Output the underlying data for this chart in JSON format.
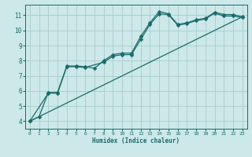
{
  "xlabel": "Humidex (Indice chaleur)",
  "bg_color": "#cce8e8",
  "line_color": "#1a6b6b",
  "grid_color": "#aacccc",
  "xlim": [
    -0.5,
    23.5
  ],
  "ylim": [
    3.5,
    11.7
  ],
  "xticks": [
    0,
    1,
    2,
    3,
    4,
    5,
    6,
    7,
    8,
    9,
    10,
    11,
    12,
    13,
    14,
    15,
    16,
    17,
    18,
    19,
    20,
    21,
    22,
    23
  ],
  "yticks": [
    4,
    5,
    6,
    7,
    8,
    9,
    10,
    11
  ],
  "line1_x": [
    0,
    1,
    2,
    3,
    4,
    5,
    6,
    7,
    8,
    9,
    10,
    11,
    12,
    13,
    14,
    15,
    16,
    17,
    18,
    19,
    20,
    21,
    22,
    23
  ],
  "line1_y": [
    4.0,
    4.3,
    5.9,
    5.9,
    7.65,
    7.65,
    7.6,
    7.5,
    8.0,
    8.4,
    8.5,
    8.5,
    9.6,
    10.5,
    11.25,
    11.1,
    10.4,
    10.5,
    10.7,
    10.8,
    11.2,
    11.05,
    11.05,
    10.9
  ],
  "line2_x": [
    0,
    2,
    3,
    4,
    5,
    6,
    8,
    9,
    10,
    11,
    12,
    13,
    14,
    15,
    16,
    17,
    18,
    19,
    20,
    21,
    22,
    23
  ],
  "line2_y": [
    4.0,
    5.85,
    5.85,
    7.6,
    7.6,
    7.55,
    7.9,
    8.3,
    8.4,
    8.4,
    9.4,
    10.4,
    11.1,
    11.05,
    10.35,
    10.45,
    10.65,
    10.75,
    11.15,
    10.95,
    10.95,
    10.85
  ],
  "line3_x": [
    0,
    23
  ],
  "line3_y": [
    4.0,
    10.9
  ],
  "marker_size": 2.5,
  "linewidth": 0.9
}
